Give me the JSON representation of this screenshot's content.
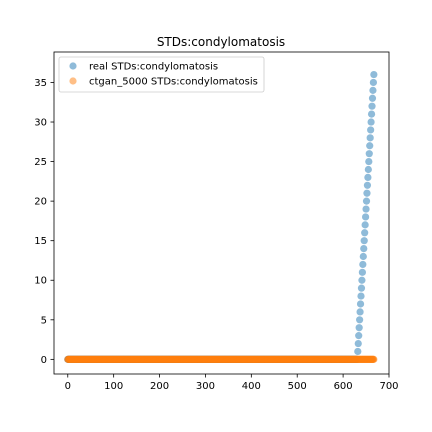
{
  "chart_data": {
    "type": "scatter",
    "title": "STDs:condylomatosis",
    "xlabel": "",
    "ylabel": "",
    "xlim": [
      -30,
      700
    ],
    "ylim": [
      -1.85,
      38.85
    ],
    "x_ticks": [
      0,
      100,
      200,
      300,
      400,
      500,
      600,
      700
    ],
    "y_ticks": [
      0,
      5,
      10,
      15,
      20,
      25,
      30,
      35
    ],
    "legend": {
      "position": "top-left"
    },
    "series": [
      {
        "name": "real STDs:condylomatosis",
        "color": "#1f77b4",
        "description": "x = 0..631 at y = 0; x = 632..667 rising one unit per index from y = 1 to y = 36",
        "flat": {
          "x_start": 0,
          "x_end": 631,
          "y": 0
        },
        "ramp": {
          "x_start": 632,
          "x_end": 667,
          "y_start": 1,
          "y_end": 36
        }
      },
      {
        "name": "ctgan_5000 STDs:condylomatosis",
        "color": "#ff7f0e",
        "flat": {
          "x_start": 0,
          "x_end": 667,
          "y": 0
        }
      }
    ]
  }
}
